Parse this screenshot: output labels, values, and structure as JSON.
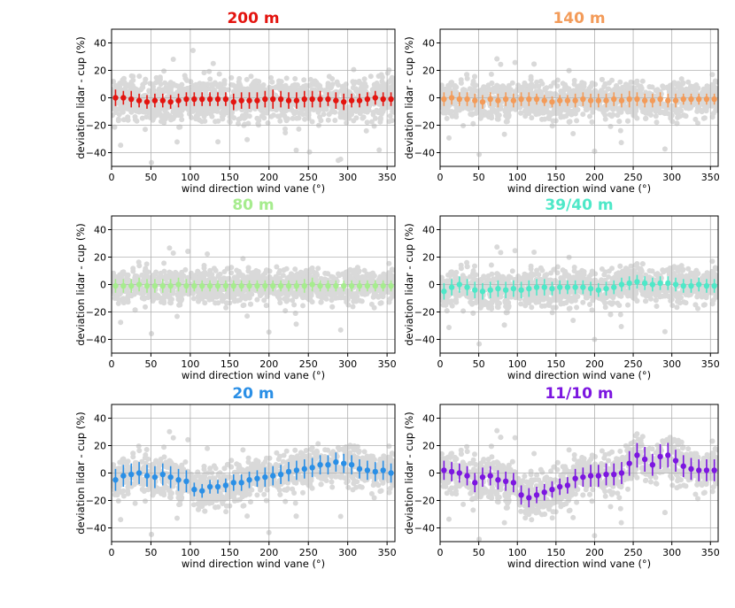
{
  "chart_data": [
    {
      "type": "scatter",
      "title": "200 m",
      "color": "#e3140f",
      "xlabel": "wind direction wind vane (°)",
      "ylabel": "deviation lidar - cup (%)",
      "xlim": [
        0,
        360
      ],
      "ylim": [
        -50,
        50
      ],
      "xticks": [
        0,
        50,
        100,
        150,
        200,
        250,
        300,
        350
      ],
      "yticks": [
        -40,
        -20,
        0,
        20,
        40
      ],
      "grid": true,
      "bin_width_deg": 10,
      "series": [
        {
          "name": "binned mean",
          "x": [
            5,
            15,
            25,
            35,
            45,
            55,
            65,
            75,
            85,
            95,
            105,
            115,
            125,
            135,
            145,
            155,
            165,
            175,
            185,
            195,
            205,
            215,
            225,
            235,
            245,
            255,
            265,
            275,
            285,
            295,
            305,
            315,
            325,
            335,
            345,
            355
          ],
          "y": [
            0,
            0,
            -1,
            -2,
            -3,
            -2,
            -2,
            -3,
            -2,
            -1,
            -1,
            -1,
            -1,
            -1,
            -1,
            -3,
            -2,
            -2,
            -2,
            -1,
            -1,
            -1,
            -2,
            -2,
            -1,
            -1,
            -1,
            -1,
            -2,
            -3,
            -2,
            -2,
            -1,
            0,
            -1,
            -1
          ],
          "err": [
            6,
            5,
            6,
            5,
            5,
            5,
            5,
            5,
            5,
            5,
            5,
            5,
            5,
            5,
            5,
            6,
            6,
            6,
            6,
            6,
            7,
            6,
            6,
            6,
            6,
            6,
            6,
            5,
            6,
            6,
            5,
            5,
            5,
            5,
            5,
            5
          ]
        },
        {
          "name": "scatter",
          "color": "#d9d9d9",
          "spread": 13,
          "mean_curve": "binned mean"
        }
      ]
    },
    {
      "type": "scatter",
      "title": "140 m",
      "color": "#f39b59",
      "xlabel": "wind direction wind vane (°)",
      "ylabel": "deviation lidar - cup (%)",
      "xlim": [
        0,
        360
      ],
      "ylim": [
        -50,
        50
      ],
      "xticks": [
        0,
        50,
        100,
        150,
        200,
        250,
        300,
        350
      ],
      "yticks": [
        -40,
        -20,
        0,
        20,
        40
      ],
      "grid": true,
      "bin_width_deg": 10,
      "series": [
        {
          "name": "binned mean",
          "x": [
            5,
            15,
            25,
            35,
            45,
            55,
            65,
            75,
            85,
            95,
            105,
            115,
            125,
            135,
            145,
            155,
            165,
            175,
            185,
            195,
            205,
            215,
            225,
            235,
            245,
            255,
            265,
            275,
            285,
            295,
            305,
            315,
            325,
            335,
            345,
            355
          ],
          "y": [
            -1,
            0,
            -1,
            -1,
            -2,
            -3,
            -1,
            -2,
            -1,
            -2,
            -1,
            -1,
            -1,
            -2,
            -3,
            -2,
            -2,
            -2,
            -1,
            -2,
            -2,
            -2,
            -1,
            -2,
            -1,
            -1,
            -2,
            -2,
            -1,
            -2,
            -2,
            -1,
            -1,
            -1,
            -1,
            -1
          ],
          "err": [
            5,
            5,
            5,
            5,
            5,
            5,
            5,
            5,
            5,
            5,
            5,
            5,
            4,
            4,
            4,
            4,
            4,
            5,
            5,
            5,
            5,
            5,
            5,
            5,
            6,
            5,
            5,
            5,
            5,
            5,
            5,
            4,
            4,
            4,
            4,
            4
          ]
        },
        {
          "name": "scatter",
          "color": "#d9d9d9",
          "spread": 11,
          "mean_curve": "binned mean"
        }
      ]
    },
    {
      "type": "scatter",
      "title": "80 m",
      "color": "#a6ec8e",
      "xlabel": "wind direction wind vane (°)",
      "ylabel": "deviation lidar - cup (%)",
      "xlim": [
        0,
        360
      ],
      "ylim": [
        -50,
        50
      ],
      "xticks": [
        0,
        50,
        100,
        150,
        200,
        250,
        300,
        350
      ],
      "yticks": [
        -40,
        -20,
        0,
        20,
        40
      ],
      "grid": true,
      "bin_width_deg": 10,
      "series": [
        {
          "name": "binned mean",
          "x": [
            5,
            15,
            25,
            35,
            45,
            55,
            65,
            75,
            85,
            95,
            105,
            115,
            125,
            135,
            145,
            155,
            165,
            175,
            185,
            195,
            205,
            215,
            225,
            235,
            245,
            255,
            265,
            275,
            285,
            295,
            305,
            315,
            325,
            335,
            345,
            355
          ],
          "y": [
            -1,
            -1,
            -1,
            0,
            -1,
            -1,
            -1,
            -1,
            0,
            -1,
            -1,
            -1,
            -1,
            -1,
            -1,
            -1,
            -1,
            -1,
            -1,
            -1,
            -1,
            -1,
            -1,
            -1,
            -1,
            0,
            -1,
            -1,
            -1,
            -1,
            -1,
            -1,
            -1,
            -1,
            -1,
            -1
          ],
          "err": [
            5,
            5,
            5,
            5,
            5,
            5,
            5,
            5,
            5,
            5,
            4,
            4,
            4,
            4,
            4,
            4,
            4,
            4,
            4,
            4,
            4,
            4,
            4,
            4,
            5,
            5,
            4,
            4,
            4,
            4,
            4,
            4,
            4,
            4,
            4,
            4
          ]
        },
        {
          "name": "scatter",
          "color": "#d9d9d9",
          "spread": 10,
          "mean_curve": "binned mean"
        }
      ]
    },
    {
      "type": "scatter",
      "title": "39/40 m",
      "color": "#4ee8c8",
      "xlabel": "wind direction wind vane (°)",
      "ylabel": "deviation lidar - cup (%)",
      "xlim": [
        0,
        360
      ],
      "ylim": [
        -50,
        50
      ],
      "xticks": [
        0,
        50,
        100,
        150,
        200,
        250,
        300,
        350
      ],
      "yticks": [
        -40,
        -20,
        0,
        20,
        40
      ],
      "grid": true,
      "bin_width_deg": 10,
      "series": [
        {
          "name": "binned mean",
          "x": [
            5,
            15,
            25,
            35,
            45,
            55,
            65,
            75,
            85,
            95,
            105,
            115,
            125,
            135,
            145,
            155,
            165,
            175,
            185,
            195,
            205,
            215,
            225,
            235,
            245,
            255,
            265,
            275,
            285,
            295,
            305,
            315,
            325,
            335,
            345,
            355
          ],
          "y": [
            -5,
            -2,
            0,
            -2,
            -4,
            -5,
            -4,
            -3,
            -4,
            -3,
            -4,
            -3,
            -2,
            -2,
            -3,
            -2,
            -2,
            -2,
            -2,
            -3,
            -4,
            -3,
            -2,
            0,
            1,
            2,
            1,
            0,
            1,
            1,
            0,
            -1,
            -1,
            0,
            -1,
            -1
          ],
          "err": [
            6,
            6,
            6,
            6,
            6,
            6,
            6,
            6,
            6,
            6,
            6,
            6,
            6,
            6,
            5,
            5,
            5,
            5,
            5,
            5,
            5,
            5,
            5,
            5,
            5,
            5,
            5,
            5,
            5,
            5,
            5,
            5,
            5,
            5,
            5,
            5
          ]
        },
        {
          "name": "scatter",
          "color": "#d9d9d9",
          "spread": 11,
          "mean_curve": "binned mean"
        }
      ]
    },
    {
      "type": "scatter",
      "title": "20 m",
      "color": "#2a8fe6",
      "xlabel": "wind direction wind vane (°)",
      "ylabel": "deviation lidar - cup (%)",
      "xlim": [
        0,
        360
      ],
      "ylim": [
        -50,
        50
      ],
      "xticks": [
        0,
        50,
        100,
        150,
        200,
        250,
        300,
        350
      ],
      "yticks": [
        -40,
        -20,
        0,
        20,
        40
      ],
      "grid": true,
      "bin_width_deg": 10,
      "series": [
        {
          "name": "binned mean",
          "x": [
            5,
            15,
            25,
            35,
            45,
            55,
            65,
            75,
            85,
            95,
            105,
            115,
            125,
            135,
            145,
            155,
            165,
            175,
            185,
            195,
            205,
            215,
            225,
            235,
            245,
            255,
            265,
            275,
            285,
            295,
            305,
            315,
            325,
            335,
            345,
            355
          ],
          "y": [
            -5,
            -2,
            -1,
            0,
            -2,
            -3,
            -1,
            -3,
            -5,
            -6,
            -12,
            -13,
            -10,
            -10,
            -9,
            -7,
            -7,
            -5,
            -4,
            -3,
            -2,
            -1,
            1,
            2,
            3,
            4,
            6,
            6,
            8,
            7,
            6,
            3,
            2,
            1,
            2,
            0
          ],
          "err": [
            8,
            8,
            8,
            8,
            8,
            8,
            8,
            8,
            8,
            8,
            5,
            5,
            5,
            5,
            5,
            6,
            6,
            6,
            6,
            7,
            7,
            7,
            7,
            7,
            7,
            7,
            7,
            7,
            7,
            7,
            7,
            7,
            7,
            7,
            7,
            7
          ]
        },
        {
          "name": "scatter",
          "color": "#d9d9d9",
          "spread": 12,
          "mean_curve": "binned mean"
        }
      ]
    },
    {
      "type": "scatter",
      "title": "11/10 m",
      "color": "#7c16e0",
      "xlabel": "wind direction wind vane (°)",
      "ylabel": "deviation lidar - cup (%)",
      "xlim": [
        0,
        360
      ],
      "ylim": [
        -50,
        50
      ],
      "xticks": [
        0,
        50,
        100,
        150,
        200,
        250,
        300,
        350
      ],
      "yticks": [
        -40,
        -20,
        0,
        20,
        40
      ],
      "grid": true,
      "bin_width_deg": 10,
      "series": [
        {
          "name": "binned mean",
          "x": [
            5,
            15,
            25,
            35,
            45,
            55,
            65,
            75,
            85,
            95,
            105,
            115,
            125,
            135,
            145,
            155,
            165,
            175,
            185,
            195,
            205,
            215,
            225,
            235,
            245,
            255,
            265,
            275,
            285,
            295,
            305,
            315,
            325,
            335,
            345,
            355
          ],
          "y": [
            2,
            1,
            0,
            -2,
            -7,
            -3,
            -2,
            -5,
            -6,
            -7,
            -16,
            -18,
            -16,
            -14,
            -12,
            -10,
            -9,
            -4,
            -3,
            -2,
            -2,
            -1,
            -1,
            0,
            7,
            13,
            10,
            6,
            12,
            13,
            9,
            5,
            3,
            2,
            2,
            2
          ],
          "err": [
            7,
            7,
            7,
            7,
            7,
            7,
            7,
            7,
            7,
            7,
            7,
            7,
            6,
            6,
            6,
            6,
            6,
            7,
            7,
            8,
            8,
            8,
            8,
            8,
            9,
            9,
            9,
            8,
            9,
            9,
            8,
            8,
            8,
            8,
            8,
            8
          ]
        },
        {
          "name": "scatter",
          "color": "#d9d9d9",
          "spread": 13,
          "mean_curve": "binned mean"
        }
      ]
    }
  ]
}
